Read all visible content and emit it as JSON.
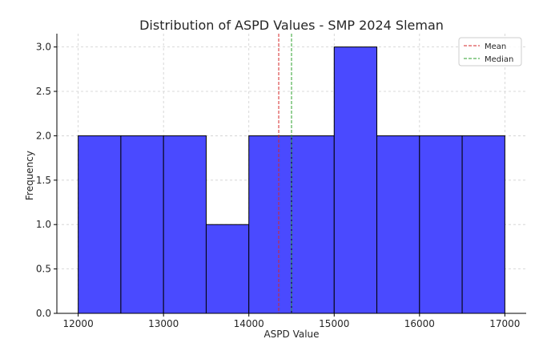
{
  "chart_data": {
    "type": "bar",
    "title": "Distribution of ASPD Values - SMP 2024 Sleman",
    "xlabel": "ASPD Value",
    "ylabel": "Frequency",
    "bins": [
      {
        "start": 12000,
        "end": 12500,
        "count": 2
      },
      {
        "start": 12500,
        "end": 13000,
        "count": 2
      },
      {
        "start": 13000,
        "end": 13500,
        "count": 2
      },
      {
        "start": 13500,
        "end": 14000,
        "count": 1
      },
      {
        "start": 14000,
        "end": 14500,
        "count": 2
      },
      {
        "start": 14500,
        "end": 15000,
        "count": 2
      },
      {
        "start": 15000,
        "end": 15500,
        "count": 3
      },
      {
        "start": 15500,
        "end": 16000,
        "count": 2
      },
      {
        "start": 16000,
        "end": 16500,
        "count": 2
      },
      {
        "start": 16500,
        "end": 17000,
        "count": 2
      }
    ],
    "xlim": [
      11750,
      17250
    ],
    "ylim": [
      0,
      3.15
    ],
    "xticks": [
      12000,
      13000,
      14000,
      15000,
      16000,
      17000
    ],
    "xtick_labels": [
      "12000",
      "13000",
      "14000",
      "15000",
      "16000",
      "17000"
    ],
    "yticks": [
      0,
      0.5,
      1.0,
      1.5,
      2.0,
      2.5,
      3.0
    ],
    "ytick_labels": [
      "0.0",
      "0.5",
      "1.0",
      "1.5",
      "2.0",
      "2.5",
      "3.0"
    ],
    "reference_lines": [
      {
        "name": "Mean",
        "value": 14350,
        "color": "#d62728",
        "style": "dashed"
      },
      {
        "name": "Median",
        "value": 14500,
        "color": "#2ca02c",
        "style": "dashed"
      }
    ],
    "bar_color": "#4a4aff",
    "bar_edge_color": "#000000",
    "grid": true,
    "legend_position": "top-right"
  }
}
